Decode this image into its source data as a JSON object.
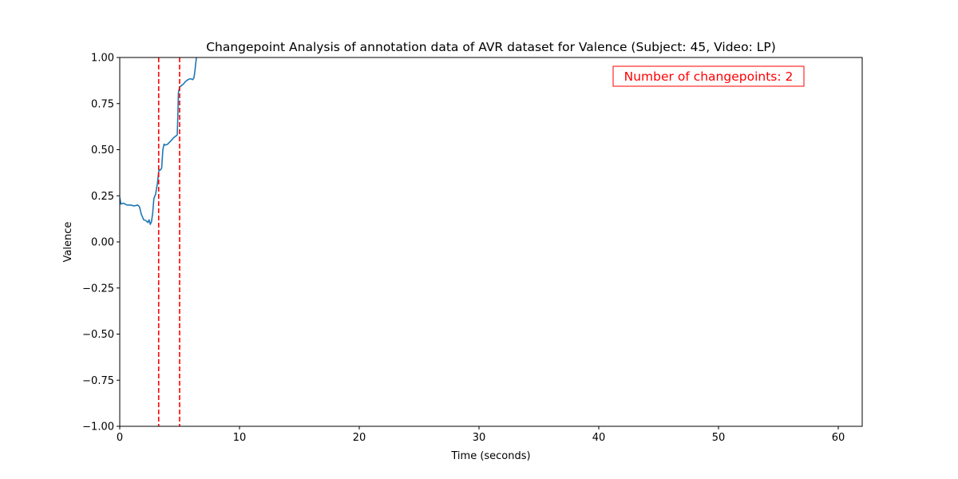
{
  "chart_data": {
    "type": "line",
    "title": "Changepoint Analysis of annotation data of AVR dataset for Valence (Subject: 45, Video: LP)",
    "xlabel": "Time (seconds)",
    "ylabel": "Valence",
    "xlim": [
      0,
      62
    ],
    "ylim": [
      -1.0,
      1.0
    ],
    "x_ticks": [
      0,
      10,
      20,
      30,
      40,
      50,
      60
    ],
    "x_tick_labels": [
      "0",
      "10",
      "20",
      "30",
      "40",
      "50",
      "60"
    ],
    "y_ticks": [
      1.0,
      0.75,
      0.5,
      0.25,
      0.0,
      -0.25,
      -0.5,
      -0.75,
      -1.0
    ],
    "y_tick_labels": [
      "1.00",
      "0.75",
      "0.50",
      "0.25",
      "0.00",
      "−0.25",
      "−0.50",
      "−0.75",
      "−1.00"
    ],
    "grid": false,
    "series": [
      {
        "color": "#1f77b4",
        "x": [
          0,
          0.1,
          0.3,
          0.6,
          0.9,
          1.2,
          1.5,
          1.65,
          1.8,
          2.0,
          2.2,
          2.35,
          2.45,
          2.55,
          2.65,
          2.75,
          2.85,
          3.0,
          3.15,
          3.25,
          3.3,
          3.4,
          3.5,
          3.6,
          3.7,
          3.8,
          4.0,
          4.3,
          4.5,
          4.7,
          4.8,
          4.85,
          4.9,
          5.0,
          5.1,
          5.3,
          5.5,
          5.7,
          5.9,
          6.1,
          6.2,
          6.3,
          6.4,
          6.5
        ],
        "y": [
          0.24,
          0.205,
          0.21,
          0.2,
          0.2,
          0.195,
          0.2,
          0.19,
          0.15,
          0.12,
          0.115,
          0.105,
          0.12,
          0.095,
          0.11,
          0.155,
          0.235,
          0.26,
          0.32,
          0.38,
          0.39,
          0.39,
          0.4,
          0.5,
          0.53,
          0.525,
          0.53,
          0.55,
          0.565,
          0.575,
          0.58,
          0.68,
          0.81,
          0.84,
          0.845,
          0.855,
          0.87,
          0.88,
          0.885,
          0.88,
          0.89,
          0.94,
          1.0,
          1.02
        ]
      }
    ],
    "changepoints": [
      3.25,
      5.0
    ],
    "changepoint_color": "#ff0000",
    "annotation": {
      "text": "Number of changepoints: 2",
      "color": "#ff0000",
      "placement": "top-right"
    }
  }
}
